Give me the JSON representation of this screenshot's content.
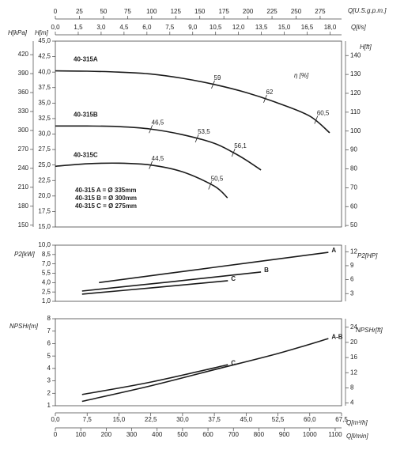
{
  "q_axes": [
    {
      "label": "Q[U.S.g.p.m.]",
      "lim": [
        0,
        297.2
      ],
      "ticks": [
        0,
        25,
        50,
        75,
        100,
        125,
        150,
        175,
        200,
        225,
        250,
        275
      ]
    },
    {
      "label": "Q[l/s]",
      "lim": [
        0,
        18.75
      ],
      "ticks": [
        {
          "value": 0,
          "label": "0,0"
        },
        {
          "value": 1.5,
          "label": "1,5"
        },
        {
          "value": 3,
          "label": "3,0"
        },
        {
          "value": 4.5,
          "label": "4,5"
        },
        {
          "value": 6,
          "label": "6,0"
        },
        {
          "value": 7.5,
          "label": "7,5"
        },
        {
          "value": 9,
          "label": "9,0"
        },
        {
          "value": 10.5,
          "label": "10,5"
        },
        {
          "value": 12,
          "label": "12,0"
        },
        {
          "value": 13.5,
          "label": "13,5"
        },
        {
          "value": 15,
          "label": "15,0"
        },
        {
          "value": 16.5,
          "label": "16,5"
        },
        {
          "value": 18,
          "label": "18,0"
        }
      ]
    },
    {
      "label": "Q[m³/h]",
      "lim": [
        0,
        67.5
      ],
      "ticks": [
        {
          "value": 0,
          "label": "0,0"
        },
        {
          "value": 7.5,
          "label": "7,5"
        },
        {
          "value": 15,
          "label": "15,0"
        },
        {
          "value": 22.5,
          "label": "22,5"
        },
        {
          "value": 30,
          "label": "30,0"
        },
        {
          "value": 37.5,
          "label": "37,5"
        },
        {
          "value": 45,
          "label": "45,0"
        },
        {
          "value": 52.5,
          "label": "52,5"
        },
        {
          "value": 60,
          "label": "60,0"
        },
        {
          "value": 67.5,
          "label": "67,5"
        }
      ]
    },
    {
      "label": "Q[l/min]",
      "lim": [
        0,
        1125
      ],
      "ticks": [
        0,
        100,
        200,
        300,
        400,
        500,
        600,
        700,
        800,
        900,
        1000,
        1100
      ]
    }
  ],
  "chart_data": [
    {
      "type": "line",
      "xlim": [
        0,
        67.5
      ],
      "ylabel": "H[m]",
      "ylim": [
        15,
        45
      ],
      "yticks": [
        {
          "value": 15,
          "label": "15,0"
        },
        {
          "value": 17.5,
          "label": "17,5"
        },
        {
          "value": 20,
          "label": "20,0"
        },
        {
          "value": 22.5,
          "label": "22,5"
        },
        {
          "value": 25,
          "label": "25,0"
        },
        {
          "value": 27.5,
          "label": "27,5"
        },
        {
          "value": 30,
          "label": "30,0"
        },
        {
          "value": 32.5,
          "label": "32,5"
        },
        {
          "value": 35,
          "label": "35,0"
        },
        {
          "value": 37.5,
          "label": "37,5"
        },
        {
          "value": 40,
          "label": "40,0"
        },
        {
          "value": 42.5,
          "label": "42,5"
        },
        {
          "value": 45,
          "label": "45,0"
        }
      ],
      "y2label": "H[ft]",
      "y2lim": [
        49.21,
        147.64
      ],
      "y2ticks": [
        50,
        60,
        70,
        80,
        90,
        100,
        110,
        120,
        130,
        140
      ],
      "y3label": "H[kPa]",
      "y3lim": [
        147.15,
        441.45
      ],
      "y3ticks": [
        150,
        180,
        210,
        240,
        270,
        300,
        330,
        360,
        390,
        420
      ],
      "series": [
        {
          "name": "40-315A",
          "color": "#1a1a1a",
          "x": [
            0,
            7.5,
            15,
            22.5,
            30,
            37.5,
            45,
            52.5,
            60,
            64.7
          ],
          "values": [
            40.2,
            40.15,
            40.0,
            39.7,
            39.0,
            38.0,
            36.7,
            35.0,
            32.9,
            30.2
          ]
        },
        {
          "name": "40-315B",
          "color": "#1a1a1a",
          "x": [
            0,
            7.5,
            15,
            22.5,
            30,
            37.5,
            42,
            45,
            48.5
          ],
          "values": [
            31.3,
            31.3,
            31.2,
            30.8,
            29.9,
            28.5,
            27.0,
            25.8,
            24.2
          ]
        },
        {
          "name": "40-315C",
          "color": "#1a1a1a",
          "x": [
            0,
            7.5,
            15,
            22.5,
            30,
            37.5,
            40.6
          ],
          "values": [
            24.8,
            25.2,
            25.3,
            25.0,
            23.9,
            21.6,
            19.7
          ]
        }
      ],
      "efficiency_label": "η [%]",
      "efficiency": [
        {
          "q": 37.2,
          "h": 38.0,
          "value": 59
        },
        {
          "q": 49.5,
          "h": 35.7,
          "value": 62
        },
        {
          "q": 61.5,
          "h": 32.3,
          "value": 60.5,
          "label": "60,5"
        },
        {
          "q": 22.5,
          "h": 30.8,
          "value": 46.5,
          "label": "46,5"
        },
        {
          "q": 33.4,
          "h": 29.3,
          "value": 53.5,
          "label": "53,5"
        },
        {
          "q": 42,
          "h": 27.0,
          "value": 56.1,
          "label": "56,1"
        },
        {
          "q": 22.5,
          "h": 25.0,
          "value": 44.5,
          "label": "44,5"
        },
        {
          "q": 36.5,
          "h": 21.7,
          "value": 50.5,
          "label": "50,5"
        }
      ],
      "notes": [
        "40-315 A = Ø 335mm",
        "40-315 B = Ø 300mm",
        "40-315 C = Ø 275mm"
      ]
    },
    {
      "type": "line",
      "xlim": [
        0,
        67.5
      ],
      "ylabel": "P2[kW]",
      "ylim": [
        1,
        10
      ],
      "yticks": [
        {
          "value": 1,
          "label": "1,0"
        },
        {
          "value": 2.5,
          "label": "2,5"
        },
        {
          "value": 4,
          "label": "4,0"
        },
        {
          "value": 5.5,
          "label": "5,5"
        },
        {
          "value": 7,
          "label": "7,0"
        },
        {
          "value": 8.5,
          "label": "8,5"
        },
        {
          "value": 10,
          "label": "10,0"
        }
      ],
      "y2label": "P2[HP]",
      "y2lim": [
        1.341,
        13.41
      ],
      "y2ticks": [
        3,
        6,
        9,
        12
      ],
      "series": [
        {
          "name": "A",
          "color": "#1a1a1a",
          "x": [
            10.3,
            37.5,
            64.4
          ],
          "values": [
            4.0,
            6.45,
            8.85
          ]
        },
        {
          "name": "B",
          "color": "#1a1a1a",
          "x": [
            6.3,
            27.5,
            48.5
          ],
          "values": [
            2.65,
            4.15,
            5.7
          ]
        },
        {
          "name": "C",
          "color": "#1a1a1a",
          "x": [
            6.3,
            22.5,
            40.7
          ],
          "values": [
            2.15,
            3.15,
            4.3
          ]
        }
      ]
    },
    {
      "type": "line",
      "xlim": [
        0,
        67.5
      ],
      "ylabel": "NPSHr[m]",
      "ylim": [
        1,
        8
      ],
      "yticks": [
        1,
        2,
        3,
        4,
        5,
        6,
        7,
        8
      ],
      "y2label": "NPSHr[ft]",
      "y2lim": [
        3.281,
        26.25
      ],
      "y2ticks": [
        4,
        8,
        12,
        16,
        20,
        24
      ],
      "series": [
        {
          "name": "A-B",
          "color": "#1a1a1a",
          "x": [
            6.3,
            22.5,
            37.5,
            52.5,
            64.4
          ],
          "values": [
            1.35,
            2.6,
            3.9,
            5.2,
            6.4
          ]
        },
        {
          "name": "C",
          "color": "#1a1a1a",
          "x": [
            6.3,
            22.5,
            40.7
          ],
          "values": [
            1.9,
            2.9,
            4.3
          ]
        }
      ]
    }
  ]
}
